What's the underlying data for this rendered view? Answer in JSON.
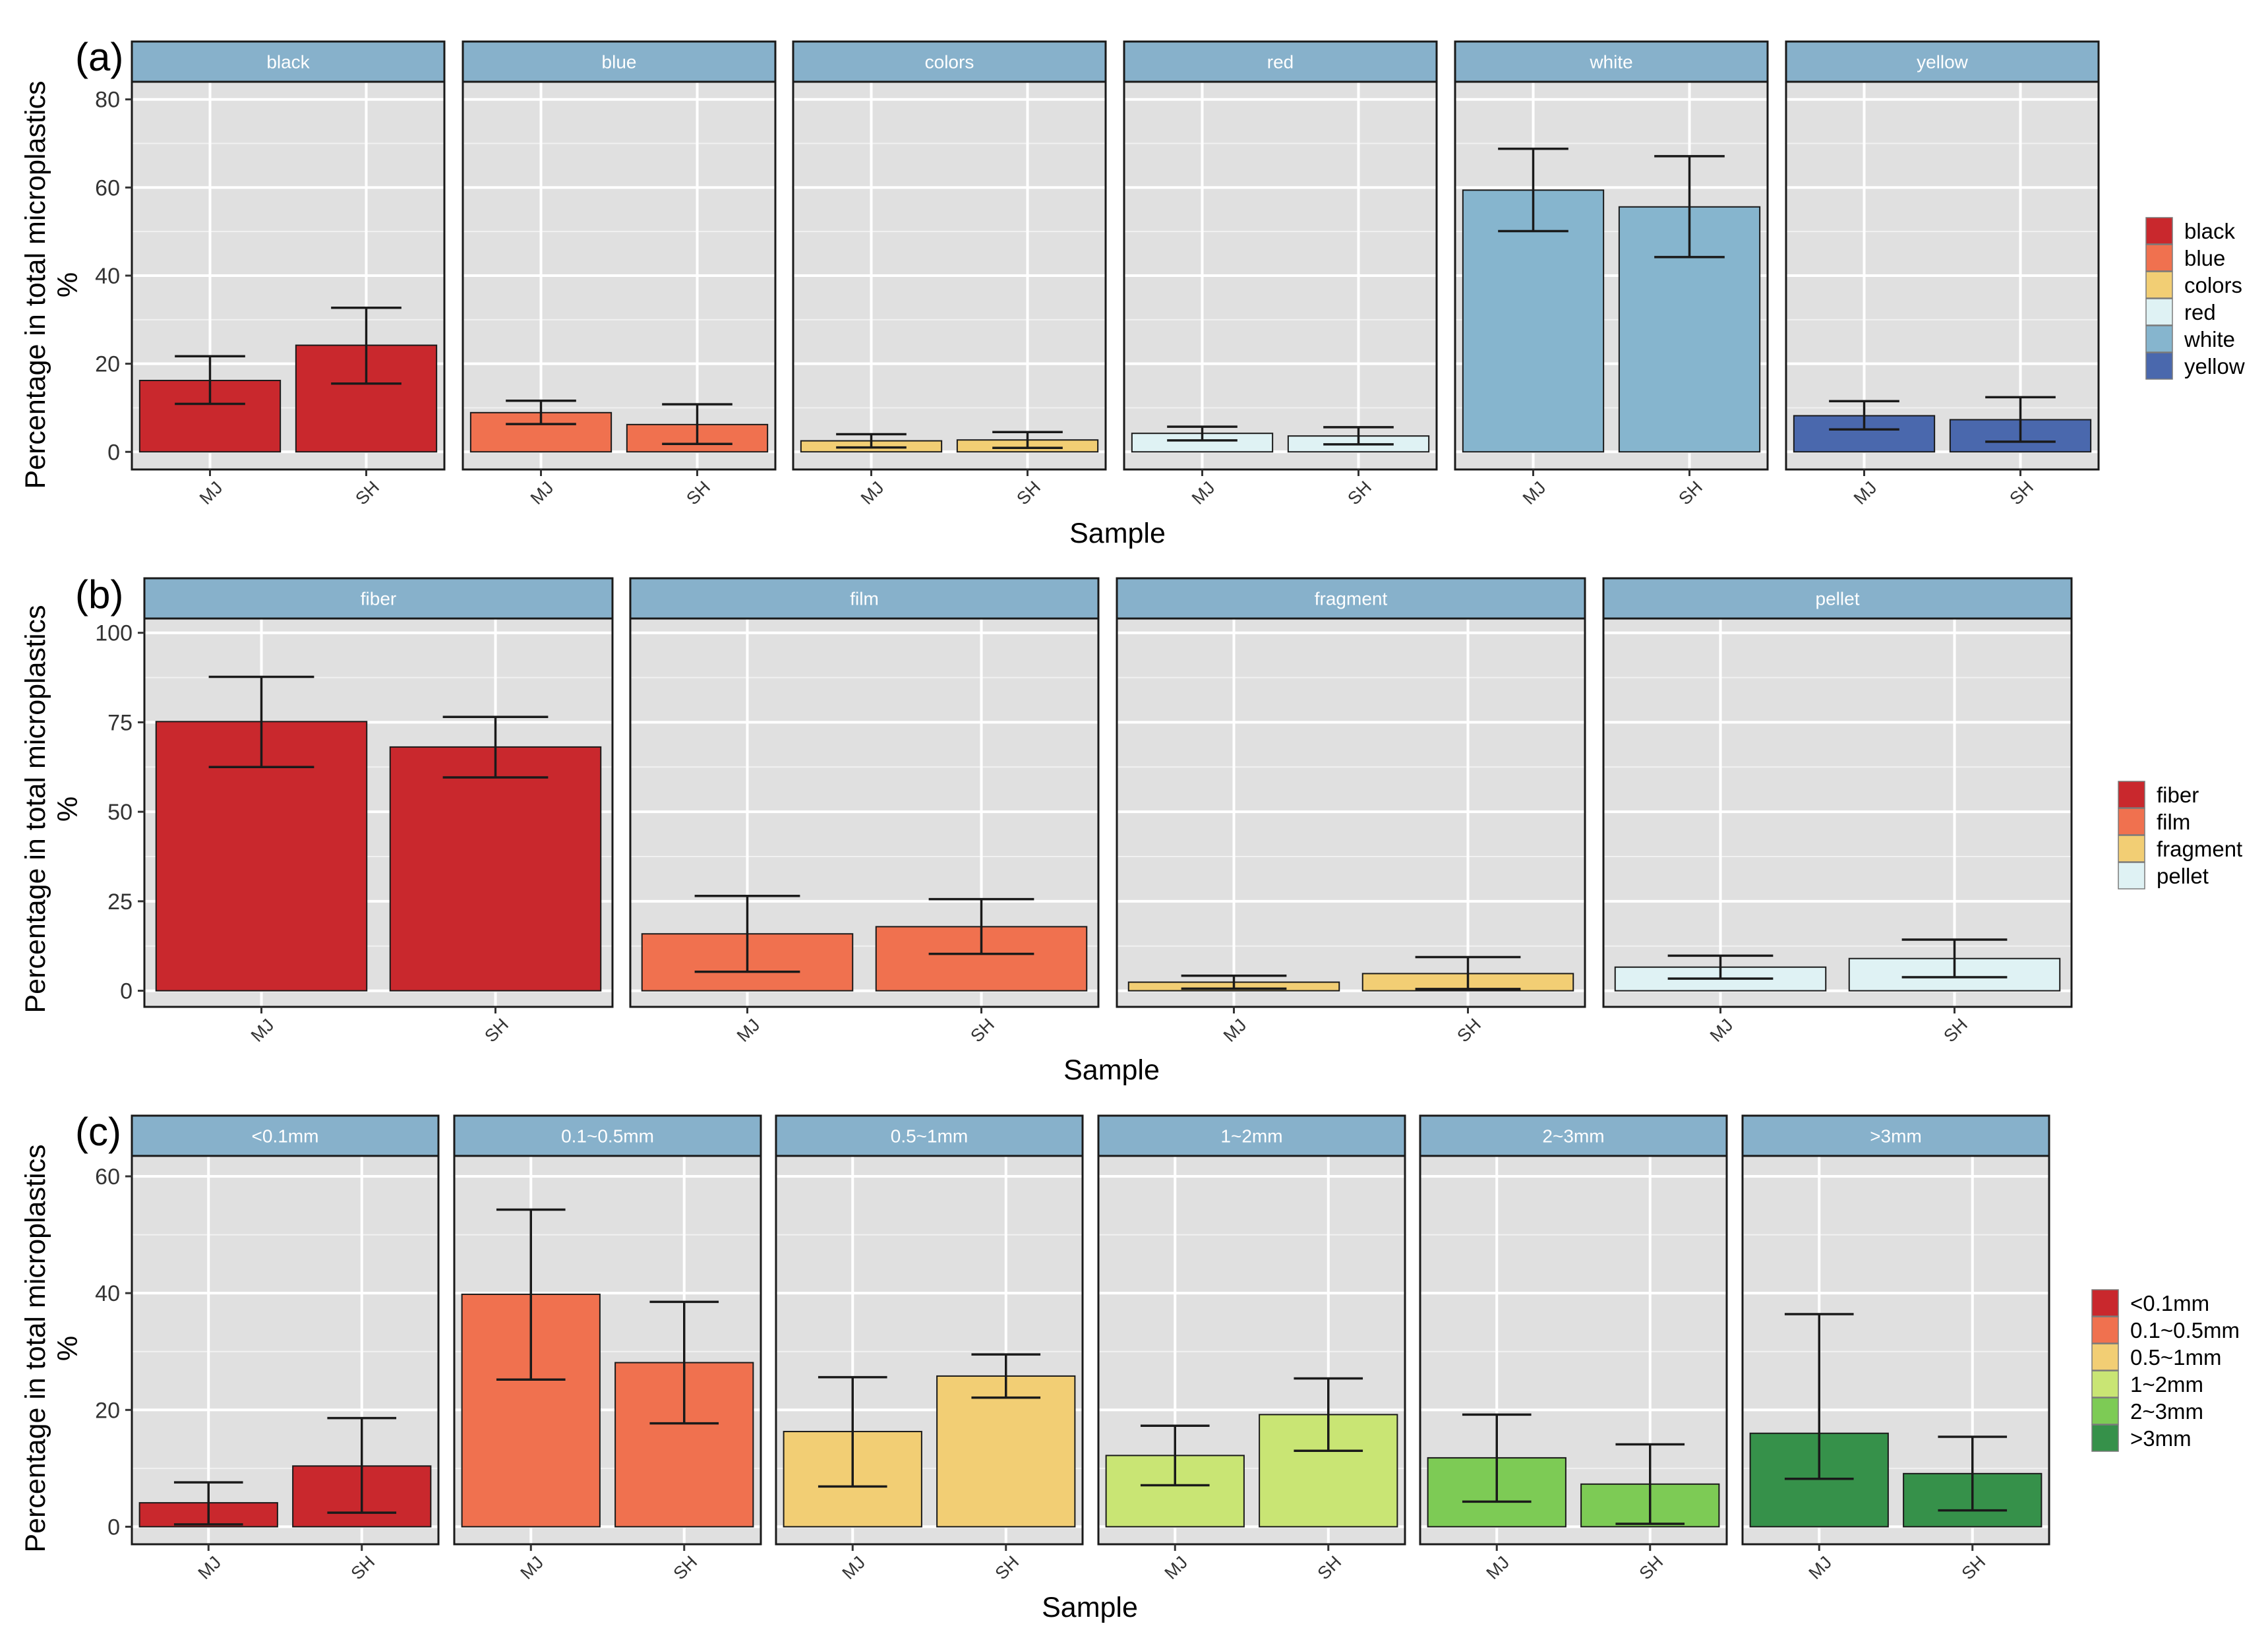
{
  "figure": {
    "colors": {
      "strip": "#87B1CB",
      "panel_bg": "#E0E0E0",
      "grid": "#FFFFFF",
      "border": "#1A1A1A",
      "errorbar": "#1A1A1A"
    }
  },
  "chart_data": [
    {
      "type": "bar",
      "panel_tag": "(a)",
      "facet_by": "color",
      "categories": [
        "MJ",
        "SH"
      ],
      "xlabel": "Sample",
      "ylabel_line1": "Percentage in total microplastics",
      "ylabel_line2": "%",
      "ylim": [
        -4,
        84
      ],
      "yticks": [
        0,
        20,
        40,
        60,
        80
      ],
      "grid": true,
      "legend_position": "right",
      "facets": [
        {
          "name": "black",
          "color": "#C9282D",
          "values": [
            16.2,
            24.2
          ],
          "err_low": [
            10.9,
            15.5
          ],
          "err_high": [
            21.7,
            32.7
          ]
        },
        {
          "name": "blue",
          "color": "#F0714F",
          "values": [
            8.9,
            6.2
          ],
          "err_low": [
            6.3,
            1.8
          ],
          "err_high": [
            11.6,
            10.8
          ]
        },
        {
          "name": "colors",
          "color": "#F2CE74",
          "values": [
            2.5,
            2.7
          ],
          "err_low": [
            1.0,
            0.9
          ],
          "err_high": [
            4.0,
            4.5
          ]
        },
        {
          "name": "red",
          "color": "#DFF2F4",
          "values": [
            4.2,
            3.6
          ],
          "err_low": [
            2.6,
            1.7
          ],
          "err_high": [
            5.7,
            5.6
          ]
        },
        {
          "name": "white",
          "color": "#86B5CE",
          "values": [
            59.4,
            55.6
          ],
          "err_low": [
            50.1,
            44.2
          ],
          "err_high": [
            68.8,
            67.1
          ]
        },
        {
          "name": "yellow",
          "color": "#4A68AD",
          "values": [
            8.2,
            7.3
          ],
          "err_low": [
            5.1,
            2.3
          ],
          "err_high": [
            11.5,
            12.4
          ]
        }
      ],
      "legend": [
        {
          "label": "black",
          "color": "#C9282D"
        },
        {
          "label": "blue",
          "color": "#F0714F"
        },
        {
          "label": "colors",
          "color": "#F2CE74"
        },
        {
          "label": "red",
          "color": "#DFF2F4"
        },
        {
          "label": "white",
          "color": "#86B5CE"
        },
        {
          "label": "yellow",
          "color": "#4A68AD"
        }
      ]
    },
    {
      "type": "bar",
      "panel_tag": "(b)",
      "facet_by": "shape",
      "categories": [
        "MJ",
        "SH"
      ],
      "xlabel": "Sample",
      "ylabel_line1": "Percentage in total microplastics",
      "ylabel_line2": "%",
      "ylim": [
        -4.5,
        104
      ],
      "yticks": [
        0,
        25,
        50,
        75,
        100
      ],
      "grid": true,
      "legend_position": "right",
      "facets": [
        {
          "name": "fiber",
          "color": "#C9282D",
          "values": [
            75.2,
            68.1
          ],
          "err_low": [
            62.5,
            59.6
          ],
          "err_high": [
            87.7,
            76.5
          ]
        },
        {
          "name": "film",
          "color": "#F0714F",
          "values": [
            15.9,
            17.9
          ],
          "err_low": [
            5.3,
            10.3
          ],
          "err_high": [
            26.5,
            25.6
          ]
        },
        {
          "name": "fragment",
          "color": "#F2CE74",
          "values": [
            2.4,
            4.8
          ],
          "err_low": [
            0.6,
            0.5
          ],
          "err_high": [
            4.2,
            9.4
          ]
        },
        {
          "name": "pellet",
          "color": "#DFF2F4",
          "values": [
            6.6,
            9.0
          ],
          "err_low": [
            3.4,
            3.8
          ],
          "err_high": [
            9.8,
            14.3
          ]
        }
      ],
      "legend": [
        {
          "label": "fiber",
          "color": "#C9282D"
        },
        {
          "label": "film",
          "color": "#F0714F"
        },
        {
          "label": "fragment",
          "color": "#F2CE74"
        },
        {
          "label": "pellet",
          "color": "#DFF2F4"
        }
      ]
    },
    {
      "type": "bar",
      "panel_tag": "(c)",
      "facet_by": "size",
      "categories": [
        "MJ",
        "SH"
      ],
      "xlabel": "Sample",
      "ylabel_line1": "Percentage in total microplastics",
      "ylabel_line2": "%",
      "ylim": [
        -3,
        63.5
      ],
      "yticks": [
        0,
        20,
        40,
        60
      ],
      "grid": true,
      "legend_position": "right",
      "facets": [
        {
          "name": "<0.1mm",
          "color": "#C9282D",
          "values": [
            4.1,
            10.4
          ],
          "err_low": [
            0.4,
            2.4
          ],
          "err_high": [
            7.6,
            18.6
          ]
        },
        {
          "name": "0.1~0.5mm",
          "color": "#F0714F",
          "values": [
            39.8,
            28.1
          ],
          "err_low": [
            25.2,
            17.7
          ],
          "err_high": [
            54.3,
            38.5
          ]
        },
        {
          "name": "0.5~1mm",
          "color": "#F2CE74",
          "values": [
            16.3,
            25.8
          ],
          "err_low": [
            6.9,
            22.1
          ],
          "err_high": [
            25.6,
            29.5
          ]
        },
        {
          "name": "1~2mm",
          "color": "#C9E574",
          "values": [
            12.2,
            19.2
          ],
          "err_low": [
            7.1,
            13.0
          ],
          "err_high": [
            17.3,
            25.4
          ]
        },
        {
          "name": "2~3mm",
          "color": "#7DCB55",
          "values": [
            11.8,
            7.3
          ],
          "err_low": [
            4.3,
            0.5
          ],
          "err_high": [
            19.2,
            14.1
          ]
        },
        {
          "name": ">3mm",
          "color": "#36914A",
          "values": [
            16.0,
            9.1
          ],
          "err_low": [
            8.2,
            2.8
          ],
          "err_high": [
            36.4,
            15.4
          ]
        }
      ],
      "legend": [
        {
          "label": "<0.1mm",
          "color": "#C9282D"
        },
        {
          "label": "0.1~0.5mm",
          "color": "#F0714F"
        },
        {
          "label": "0.5~1mm",
          "color": "#F2CE74"
        },
        {
          "label": "1~2mm",
          "color": "#C9E574"
        },
        {
          "label": "2~3mm",
          "color": "#7DCB55"
        },
        {
          "label": ">3mm",
          "color": "#36914A"
        }
      ]
    }
  ]
}
